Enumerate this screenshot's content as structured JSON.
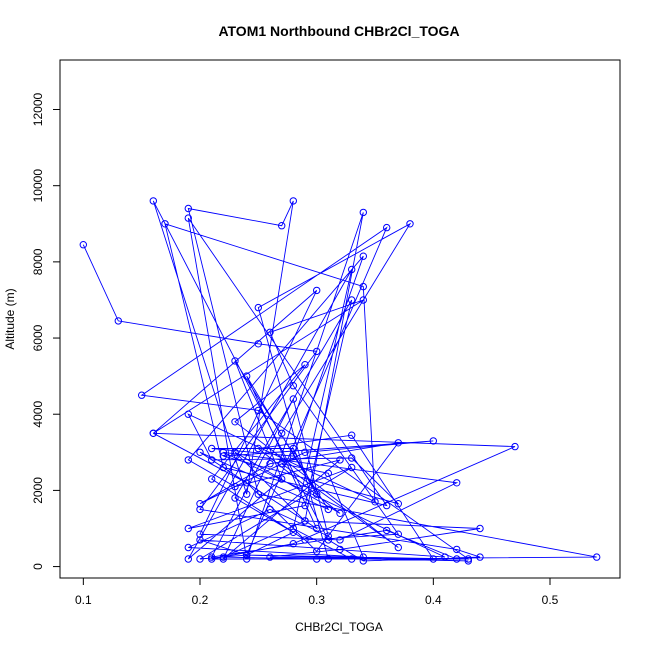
{
  "chart_data": {
    "type": "line",
    "title": "ATOM1 Northbound CHBr2Cl_TOGA",
    "xlabel": "CHBr2Cl_TOGA",
    "ylabel": "Altitude (m)",
    "xlim": [
      0.08,
      0.56
    ],
    "ylim": [
      -300,
      13300
    ],
    "x_ticks": [
      0.1,
      0.2,
      0.3,
      0.4,
      0.5
    ],
    "y_ticks": [
      0,
      2000,
      4000,
      6000,
      8000,
      10000,
      12000
    ],
    "grid": false,
    "color": "#0000ff",
    "series": [
      {
        "x": [
          0.1,
          0.13,
          0.25,
          0.3,
          0.2,
          0.42,
          0.44,
          0.34,
          0.31,
          0.16,
          0.24,
          0.28,
          0.27,
          0.19,
          0.25,
          0.54,
          0.3,
          0.22,
          0.29,
          0.34,
          0.24,
          0.19,
          0.36,
          0.22,
          0.17,
          0.34,
          0.35,
          0.19,
          0.21,
          0.33,
          0.37,
          0.22,
          0.4,
          0.29,
          0.2,
          0.26,
          0.37,
          0.3,
          0.24,
          0.16,
          0.47,
          0.28,
          0.21,
          0.4,
          0.33,
          0.25,
          0.32,
          0.23,
          0.29,
          0.44,
          0.32,
          0.26,
          0.43,
          0.24,
          0.2,
          0.41,
          0.22,
          0.42,
          0.32,
          0.2,
          0.3,
          0.16,
          0.34,
          0.26,
          0.28,
          0.37,
          0.29,
          0.21,
          0.29,
          0.23,
          0.37,
          0.27,
          0.31,
          0.34,
          0.19,
          0.26,
          0.31,
          0.28,
          0.21,
          0.36,
          0.42,
          0.24,
          0.28,
          0.23,
          0.33,
          0.29,
          0.19,
          0.33,
          0.2,
          0.24,
          0.36,
          0.15,
          0.25,
          0.43,
          0.31,
          0.25,
          0.38,
          0.27,
          0.22,
          0.32,
          0.23,
          0.19,
          0.34,
          0.28,
          0.21,
          0.28,
          0.3,
          0.24,
          0.3,
          0.2,
          0.31,
          0.23,
          0.27,
          0.19,
          0.33,
          0.28,
          0.33
        ],
        "y": [
          8450,
          6450,
          5850,
          5650,
          1500,
          450,
          250,
          150,
          700,
          9600,
          1900,
          9600,
          8950,
          9400,
          1900,
          250,
          200,
          250,
          1200,
          9300,
          200,
          9150,
          1600,
          2600,
          9000,
          7350,
          1700,
          4000,
          2800,
          2850,
          1650,
          2900,
          3300,
          3000,
          1650,
          2700,
          3250,
          400,
          2200,
          3500,
          3150,
          600,
          200,
          200,
          3450,
          3100,
          1400,
          3000,
          1200,
          1000,
          450,
          250,
          150,
          300,
          700,
          250,
          3000,
          2200,
          700,
          850,
          7250,
          3500,
          7000,
          6150,
          4750,
          850,
          700,
          2300,
          5300,
          3800,
          500,
          2700,
          2450,
          250,
          500,
          1500,
          800,
          4400,
          250,
          950,
          200,
          300,
          900,
          1800,
          7000,
          1600,
          1000,
          2600,
          200,
          300,
          8900,
          4500,
          4100,
          200,
          200,
          6800,
          9000,
          3500,
          200,
          2800,
          2100,
          2800,
          8150,
          2900,
          3100,
          3100,
          1900,
          5000,
          1000,
          3000,
          1500,
          5400,
          2300,
          200,
          7800,
          1000,
          200
        ]
      }
    ]
  }
}
